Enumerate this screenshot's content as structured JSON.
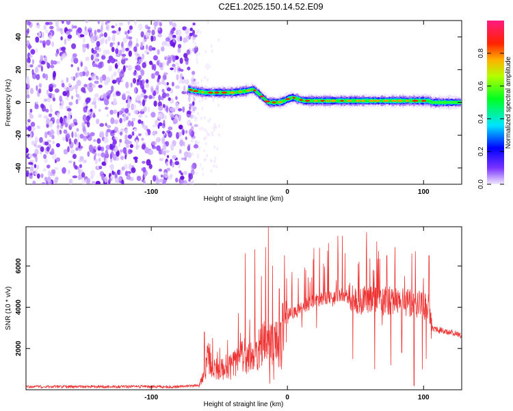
{
  "title": "C2E1.2025.150.14.52.E09",
  "chart_data": [
    {
      "type": "heatmap",
      "xlabel": "Height of straight line (km)",
      "ylabel": "Frequency (Hz)",
      "xlim": [
        -192,
        128
      ],
      "ylim": [
        -50,
        50
      ],
      "xticks": [
        -100,
        0,
        100
      ],
      "yticks": [
        -40,
        -20,
        0,
        20,
        40
      ],
      "noise_region_x": [
        -192,
        -70
      ],
      "ridge": {
        "x": [
          -73,
          -68,
          -60,
          -50,
          -40,
          -30,
          -25,
          -22,
          -18,
          -14,
          -10,
          -6,
          -2,
          0,
          4,
          8,
          12,
          20,
          30,
          40,
          50,
          60,
          70,
          80,
          90,
          100,
          104,
          106,
          128
        ],
        "y": [
          8,
          7,
          6,
          6,
          6,
          7,
          8,
          6,
          3,
          0,
          0,
          0,
          1,
          2,
          3,
          2,
          1,
          1,
          1,
          1,
          1,
          1,
          1,
          1,
          1,
          1,
          1,
          0,
          0
        ]
      },
      "colorbar": {
        "label": "Normalized spectral amplitude",
        "range": [
          0,
          1
        ],
        "ticks": [
          0.0,
          0.2,
          0.4,
          0.6,
          0.8
        ]
      },
      "grid": false
    },
    {
      "type": "line",
      "xlabel": "Height of straight line (km)",
      "ylabel": "SNR (10 * v/v)",
      "xlim": [
        -192,
        128
      ],
      "ylim": [
        0,
        7900
      ],
      "xticks": [
        -100,
        0,
        100
      ],
      "yticks": [
        2000,
        4000,
        6000
      ],
      "series_color": "#ee3333",
      "envelope": {
        "x": [
          -192,
          -160,
          -120,
          -80,
          -65,
          -62,
          -58,
          -55,
          -50,
          -45,
          -40,
          -35,
          -30,
          -25,
          -20,
          -15,
          -12,
          -8,
          -5,
          -2,
          0,
          5,
          10,
          20,
          30,
          40,
          50,
          55,
          60,
          70,
          80,
          90,
          100,
          104,
          106,
          110,
          120,
          128
        ],
        "y": [
          150,
          150,
          150,
          150,
          200,
          600,
          1600,
          900,
          1100,
          900,
          1200,
          1500,
          1700,
          1900,
          2100,
          2200,
          2000,
          2300,
          2400,
          3200,
          3700,
          3700,
          4000,
          4300,
          4500,
          4600,
          4400,
          4300,
          4400,
          4300,
          4300,
          4200,
          4100,
          3900,
          3000,
          2900,
          2800,
          2600
        ]
      },
      "spikes": [
        {
          "x": -61,
          "y": 2800
        },
        {
          "x": -55,
          "y": 2500
        },
        {
          "x": -44,
          "y": 2400
        },
        {
          "x": -36,
          "y": 3700
        },
        {
          "x": -31,
          "y": 6600
        },
        {
          "x": -24,
          "y": 6800
        },
        {
          "x": -19,
          "y": 5500
        },
        {
          "x": -16,
          "y": 6900
        },
        {
          "x": -14,
          "y": 7900
        },
        {
          "x": -11,
          "y": 6000
        },
        {
          "x": -6,
          "y": 4900
        },
        {
          "x": 8,
          "y": 5400
        },
        {
          "x": 36,
          "y": 5300
        },
        {
          "x": 52,
          "y": 6100
        },
        {
          "x": 58,
          "y": 6700
        },
        {
          "x": 63,
          "y": 5800
        },
        {
          "x": 73,
          "y": 6500
        },
        {
          "x": 79,
          "y": 6900
        },
        {
          "x": 86,
          "y": 5500
        },
        {
          "x": 94,
          "y": 6700
        },
        {
          "x": 100,
          "y": 5400
        },
        {
          "x": 104,
          "y": 6500
        }
      ],
      "dips": [
        {
          "x": -13,
          "y": 300
        },
        {
          "x": -10,
          "y": 500
        },
        {
          "x": 48,
          "y": 1500
        },
        {
          "x": 64,
          "y": 1000
        },
        {
          "x": 76,
          "y": 1200
        },
        {
          "x": 84,
          "y": 1800
        },
        {
          "x": 93,
          "y": 200
        },
        {
          "x": 99,
          "y": 1000
        },
        {
          "x": 102,
          "y": 1500
        }
      ],
      "grid": false
    }
  ]
}
